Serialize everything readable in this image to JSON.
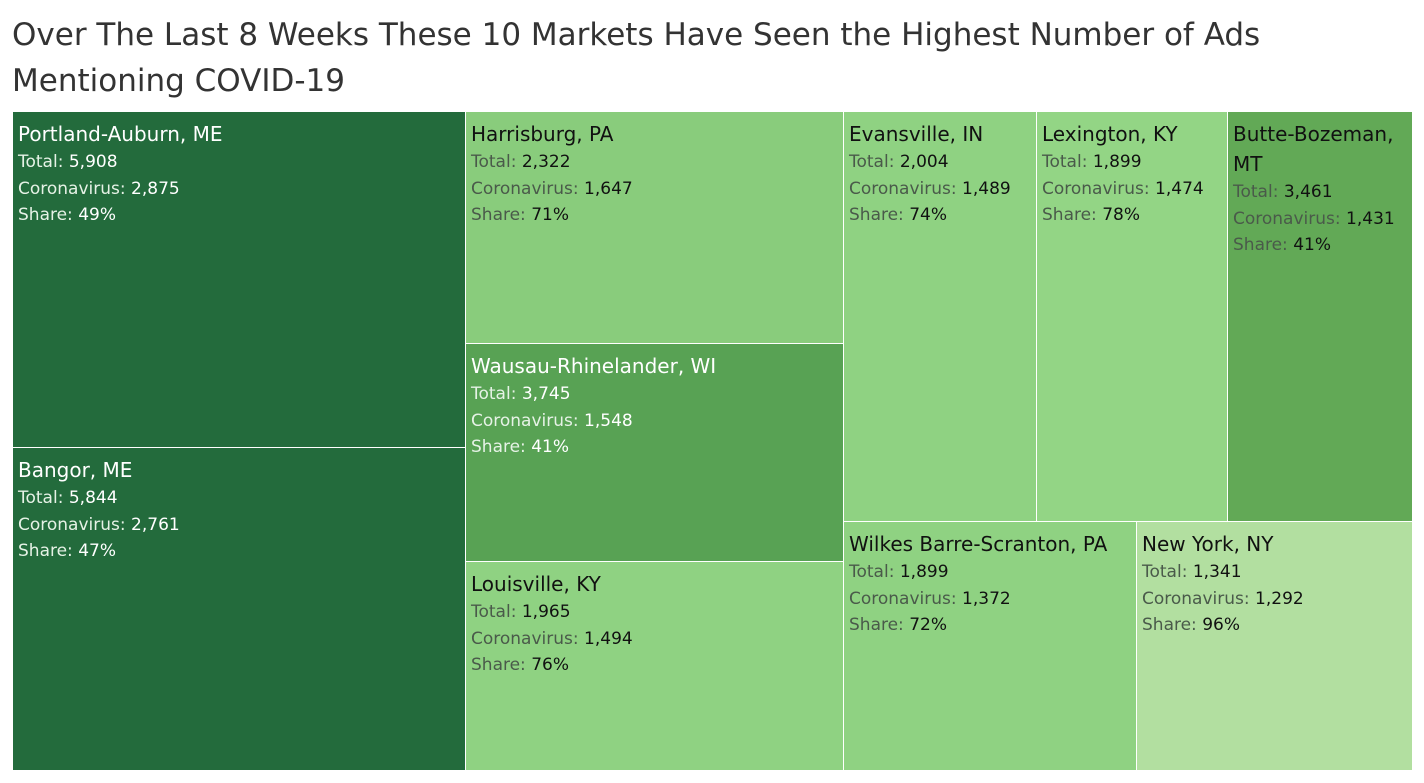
{
  "title": "Over The Last 8 Weeks These 10 Markets Have Seen the Highest Number of Ads Mentioning COVID-19",
  "labels": {
    "total": "Total:",
    "coronavirus": "Coronavirus:",
    "share": "Share:"
  },
  "chart_data": {
    "type": "treemap",
    "title": "Over The Last 8 Weeks These 10 Markets Have Seen the Highest Number of Ads Mentioning COVID-19",
    "size_measure": "coronavirus",
    "color_measure": "share",
    "color_scale": {
      "low": "#b2dfa0",
      "high": "#236b3c"
    },
    "items": [
      {
        "market": "Portland-Auburn, ME",
        "total": "5,908",
        "coronavirus": "2,875",
        "share": "49%",
        "color": "#236b3c"
      },
      {
        "market": "Bangor, ME",
        "total": "5,844",
        "coronavirus": "2,761",
        "share": "47%",
        "color": "#236b3c"
      },
      {
        "market": "Harrisburg, PA",
        "total": "2,322",
        "coronavirus": "1,647",
        "share": "71%",
        "color": "#89cc7c"
      },
      {
        "market": "Wausau-Rhinelander, WI",
        "total": "3,745",
        "coronavirus": "1,548",
        "share": "41%",
        "color": "#58a254"
      },
      {
        "market": "Louisville, KY",
        "total": "1,965",
        "coronavirus": "1,494",
        "share": "76%",
        "color": "#8fd282"
      },
      {
        "market": "Evansville, IN",
        "total": "2,004",
        "coronavirus": "1,489",
        "share": "74%",
        "color": "#8fd282"
      },
      {
        "market": "Lexington, KY",
        "total": "1,899",
        "coronavirus": "1,474",
        "share": "78%",
        "color": "#93d585"
      },
      {
        "market": "Butte-Bozeman, MT",
        "total": "3,461",
        "coronavirus": "1,431",
        "share": "41%",
        "color": "#62a956"
      },
      {
        "market": "Wilkes Barre-Scranton, PA",
        "total": "1,899",
        "coronavirus": "1,372",
        "share": "72%",
        "color": "#8fd282"
      },
      {
        "market": "New York, NY",
        "total": "1,341",
        "coronavirus": "1,292",
        "share": "96%",
        "color": "#b2dfa0"
      }
    ]
  }
}
